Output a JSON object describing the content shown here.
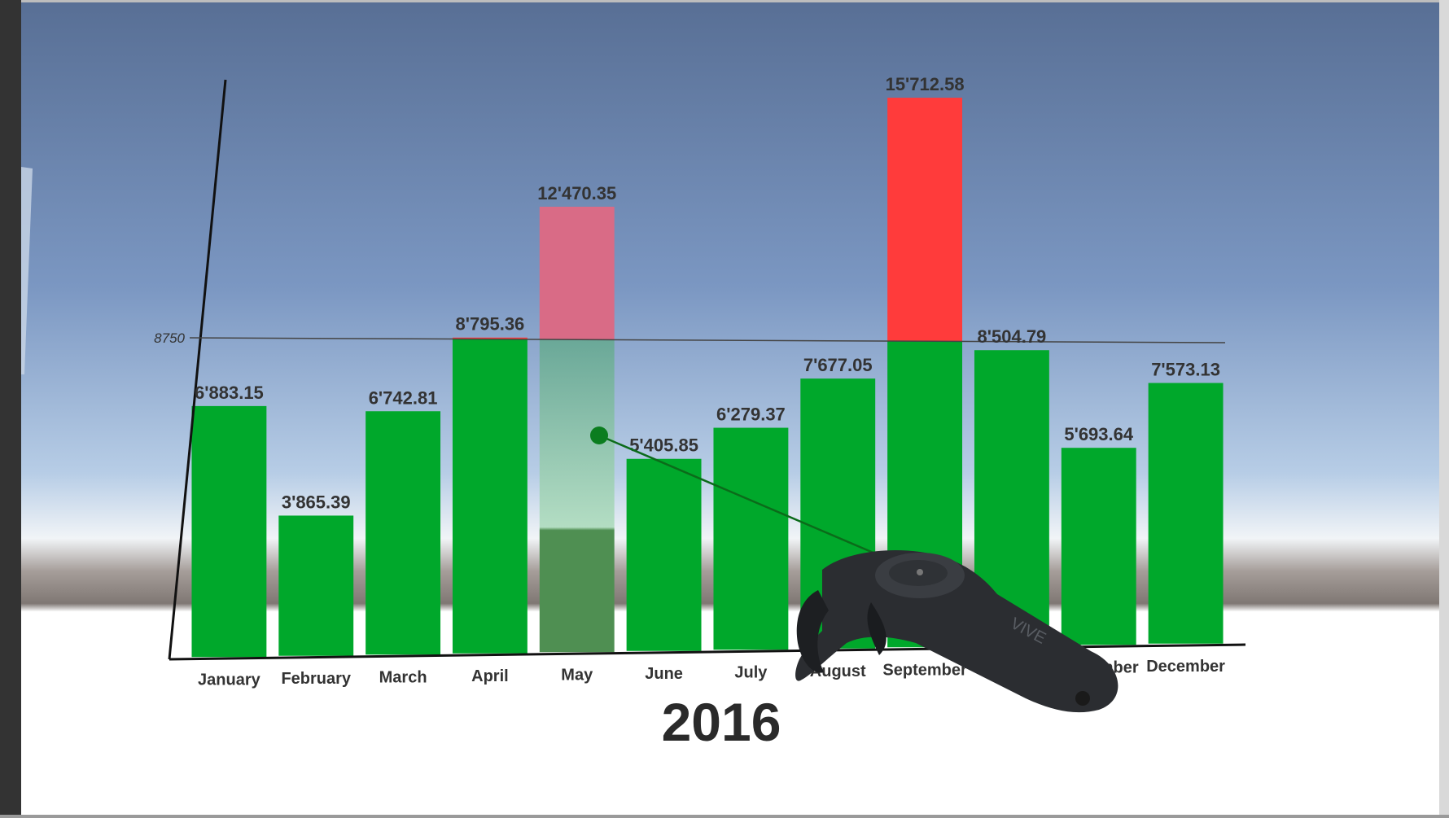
{
  "chart_data": {
    "type": "bar",
    "title": "2016",
    "categories": [
      "January",
      "February",
      "March",
      "April",
      "May",
      "June",
      "July",
      "August",
      "September",
      "October",
      "November",
      "December"
    ],
    "values": [
      6883.15,
      3865.39,
      6742.81,
      8795.36,
      12470.35,
      5405.85,
      6279.37,
      7677.05,
      15712.58,
      8504.79,
      5693.64,
      7573.13
    ],
    "value_labels": [
      "6'883.15",
      "3'865.39",
      "6'742.81",
      "8'795.36",
      "12'470.35",
      "5'405.85",
      "6'279.37",
      "7'677.05",
      "15'712.58",
      "8'504.79",
      "5'693.64",
      "7'573.13"
    ],
    "threshold": 8750,
    "threshold_label": "8750",
    "selected_index": 4,
    "colors": {
      "below": "#00a82b",
      "above": "#ff3b3b",
      "selected_above": "#d96b86",
      "selected_below": "#5fae82"
    }
  }
}
